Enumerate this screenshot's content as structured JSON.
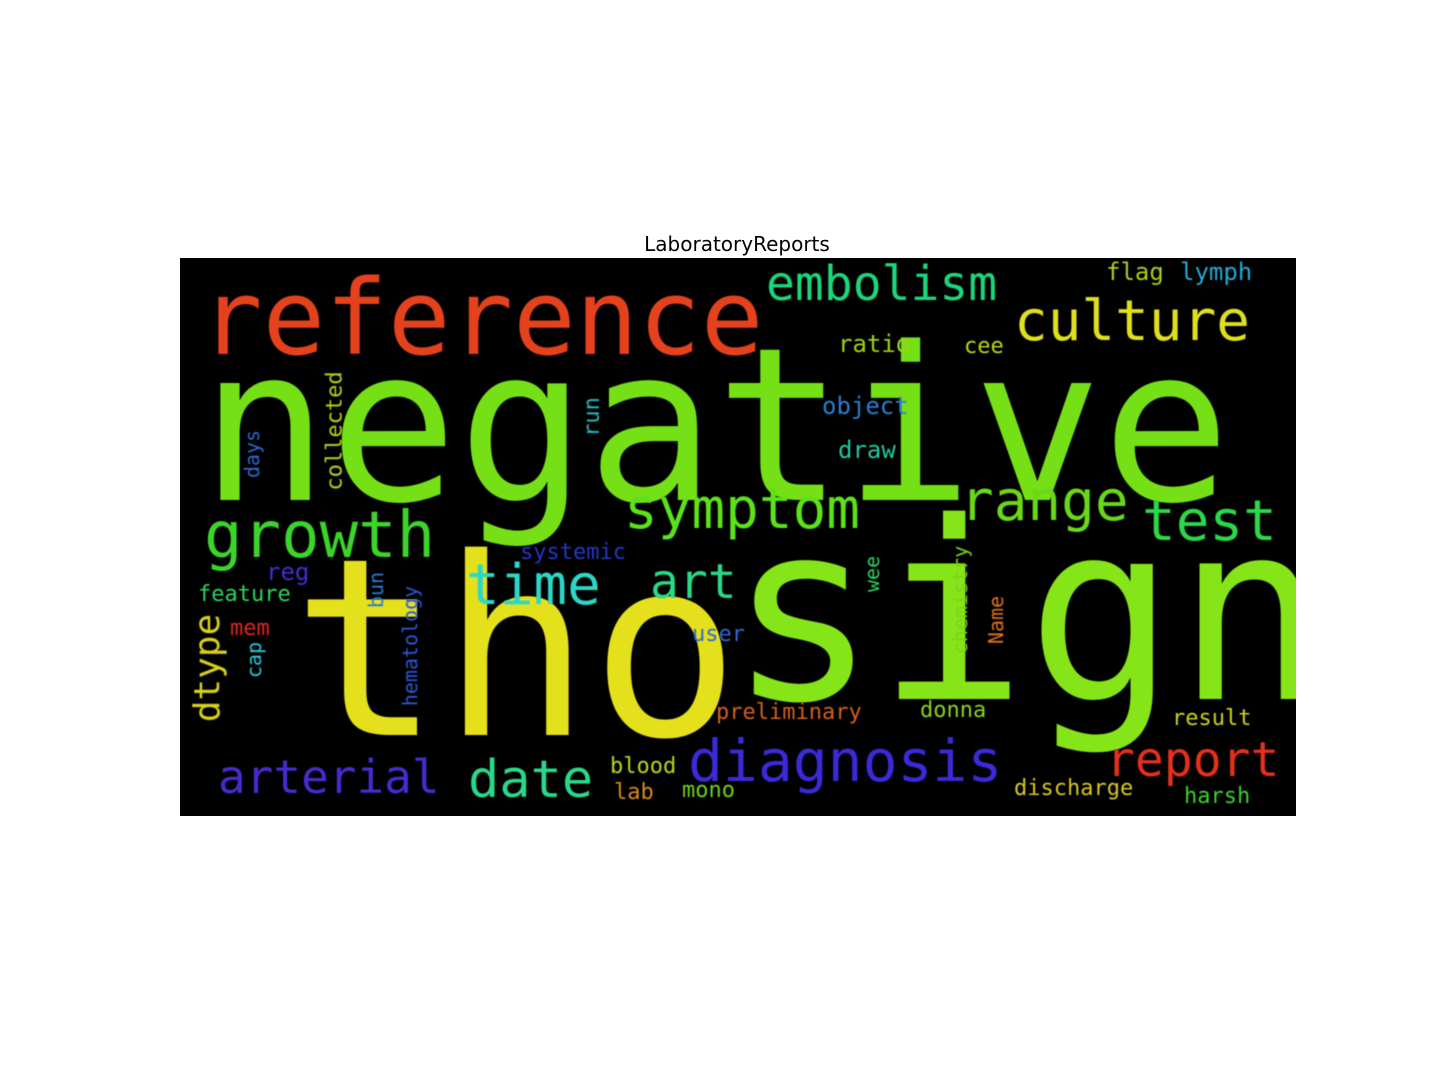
{
  "figure": {
    "title": "LaboratoryReports"
  },
  "wordcloud": {
    "words": [
      {
        "text": "negative",
        "color": "#76e016"
      },
      {
        "text": "tho",
        "color": "#e5e01c"
      },
      {
        "text": "sign",
        "color": "#86e518"
      },
      {
        "text": "reference",
        "color": "#e4421c"
      },
      {
        "text": "embolism",
        "color": "#1cd67a"
      },
      {
        "text": "culture",
        "color": "#dfe01b"
      },
      {
        "text": "flag",
        "color": "#a8cf19"
      },
      {
        "text": "lymph",
        "color": "#24a8d6"
      },
      {
        "text": "ratio",
        "color": "#a0d21a"
      },
      {
        "text": "cee",
        "color": "#bcd41a"
      },
      {
        "text": "object",
        "color": "#2a7fd4"
      },
      {
        "text": "draw",
        "color": "#22c9a0"
      },
      {
        "text": "symptom",
        "color": "#5ce21a"
      },
      {
        "text": "range",
        "color": "#6ad819"
      },
      {
        "text": "test",
        "color": "#2ad84a"
      },
      {
        "text": "growth",
        "color": "#3cd42a"
      },
      {
        "text": "time",
        "color": "#2ad8c8"
      },
      {
        "text": "art",
        "color": "#2ad886"
      },
      {
        "text": "systemic",
        "color": "#2436c8"
      },
      {
        "text": "reg",
        "color": "#4a2ad0"
      },
      {
        "text": "feature",
        "color": "#2ad460"
      },
      {
        "text": "mem",
        "color": "#e0261c"
      },
      {
        "text": "user",
        "color": "#2a6ad4"
      },
      {
        "text": "diagnosis",
        "color": "#3a2ad8"
      },
      {
        "text": "report",
        "color": "#e4301c"
      },
      {
        "text": "result",
        "color": "#cfd21a"
      },
      {
        "text": "arterial",
        "color": "#4a2ad0"
      },
      {
        "text": "date",
        "color": "#2ad88a"
      },
      {
        "text": "blood",
        "color": "#bcd41a"
      },
      {
        "text": "lab",
        "color": "#d48a1c"
      },
      {
        "text": "mono",
        "color": "#6ad41a"
      },
      {
        "text": "preliminary",
        "color": "#d4601c"
      },
      {
        "text": "donna",
        "color": "#8ad41a"
      },
      {
        "text": "discharge",
        "color": "#d8c81a"
      },
      {
        "text": "harsh",
        "color": "#3ad42a"
      },
      {
        "text": "dtype",
        "color": "#d8d21a"
      },
      {
        "text": "days",
        "color": "#2a6ad4"
      },
      {
        "text": "collected",
        "color": "#b8d01a"
      },
      {
        "text": "run",
        "color": "#26b8c0"
      },
      {
        "text": "cap",
        "color": "#2ac8d8"
      },
      {
        "text": "bun",
        "color": "#2a7ad4"
      },
      {
        "text": "hematology",
        "color": "#2a5ad8"
      },
      {
        "text": "wee",
        "color": "#2ad460"
      },
      {
        "text": "chemistry",
        "color": "#7ad41a"
      },
      {
        "text": "Name",
        "color": "#e0741c"
      }
    ]
  }
}
